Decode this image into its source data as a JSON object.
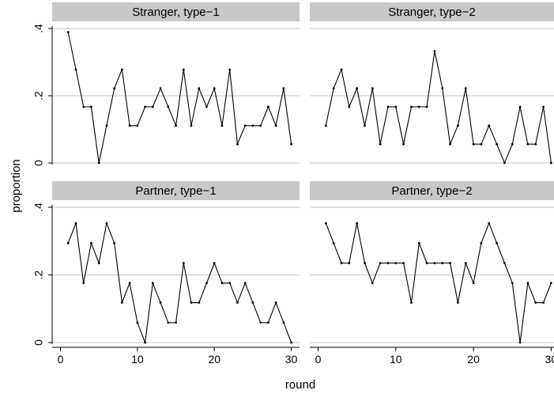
{
  "chart_data": {
    "type": "line",
    "xlabel": "round",
    "ylabel": "proportion",
    "xlim": [
      0,
      30
    ],
    "ylim": [
      0,
      0.4
    ],
    "x_ticks": [
      0,
      10,
      20,
      30
    ],
    "y_ticks": [
      0,
      0.2,
      0.4
    ],
    "x_tick_labels": [
      "0",
      "10",
      "20",
      "30"
    ],
    "y_tick_labels": [
      "0",
      ".2",
      ".4"
    ],
    "grid": true,
    "line_color": "#000000",
    "strip_color": "#c8c8c8",
    "panels": [
      {
        "title": "Stranger, type−1",
        "x": [
          1,
          2,
          3,
          4,
          5,
          6,
          7,
          8,
          9,
          10,
          11,
          12,
          13,
          14,
          15,
          16,
          17,
          18,
          19,
          20,
          21,
          22,
          23,
          24,
          25,
          26,
          27,
          28,
          29,
          30
        ],
        "values": [
          0.389,
          0.278,
          0.167,
          0.167,
          0.0,
          0.111,
          0.222,
          0.278,
          0.111,
          0.111,
          0.167,
          0.167,
          0.222,
          0.167,
          0.111,
          0.278,
          0.111,
          0.222,
          0.167,
          0.222,
          0.111,
          0.278,
          0.056,
          0.111,
          0.111,
          0.111,
          0.167,
          0.111,
          0.222,
          0.056
        ]
      },
      {
        "title": "Stranger, type−2",
        "x": [
          1,
          2,
          3,
          4,
          5,
          6,
          7,
          8,
          9,
          10,
          11,
          12,
          13,
          14,
          15,
          16,
          17,
          18,
          19,
          20,
          21,
          22,
          23,
          24,
          25,
          26,
          27,
          28,
          29,
          30
        ],
        "values": [
          0.111,
          0.222,
          0.278,
          0.167,
          0.222,
          0.111,
          0.222,
          0.056,
          0.167,
          0.167,
          0.056,
          0.167,
          0.167,
          0.167,
          0.333,
          0.222,
          0.056,
          0.111,
          0.222,
          0.056,
          0.056,
          0.111,
          0.056,
          0.0,
          0.056,
          0.167,
          0.056,
          0.056,
          0.167,
          0.0
        ]
      },
      {
        "title": "Partner, type−1",
        "x": [
          1,
          2,
          3,
          4,
          5,
          6,
          7,
          8,
          9,
          10,
          11,
          12,
          13,
          14,
          15,
          16,
          17,
          18,
          19,
          20,
          21,
          22,
          23,
          24,
          25,
          26,
          27,
          28,
          29,
          30
        ],
        "values": [
          0.294,
          0.353,
          0.176,
          0.294,
          0.235,
          0.353,
          0.294,
          0.118,
          0.176,
          0.059,
          0.0,
          0.176,
          0.118,
          0.059,
          0.059,
          0.235,
          0.118,
          0.118,
          0.176,
          0.235,
          0.176,
          0.176,
          0.118,
          0.176,
          0.118,
          0.059,
          0.059,
          0.118,
          0.059,
          0.0
        ]
      },
      {
        "title": "Partner, type−2",
        "x": [
          1,
          2,
          3,
          4,
          5,
          6,
          7,
          8,
          9,
          10,
          11,
          12,
          13,
          14,
          15,
          16,
          17,
          18,
          19,
          20,
          21,
          22,
          23,
          24,
          25,
          26,
          27,
          28,
          29,
          30
        ],
        "values": [
          0.353,
          0.294,
          0.235,
          0.235,
          0.353,
          0.235,
          0.176,
          0.235,
          0.235,
          0.235,
          0.235,
          0.118,
          0.294,
          0.235,
          0.235,
          0.235,
          0.235,
          0.118,
          0.235,
          0.176,
          0.294,
          0.353,
          0.294,
          0.235,
          0.176,
          0.0,
          0.176,
          0.118,
          0.118,
          0.176
        ]
      }
    ]
  }
}
